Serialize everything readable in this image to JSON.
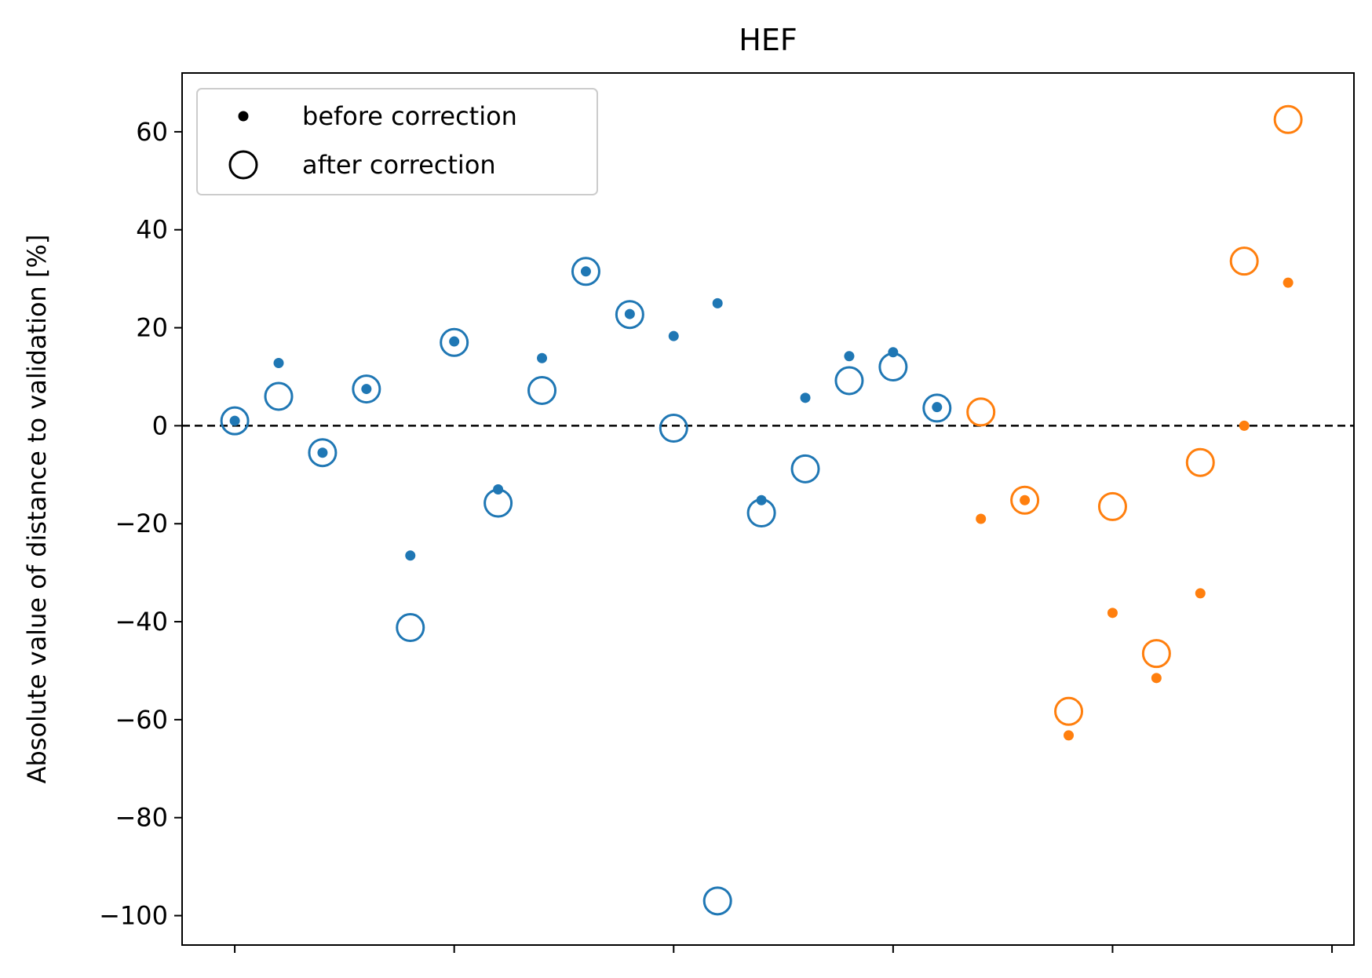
{
  "chart_data": {
    "type": "scatter",
    "title": "HEF",
    "xlabel": "",
    "ylabel": "Absolute value of distance to validation [%]",
    "xlim": [
      -1.2,
      25.5
    ],
    "ylim": [
      -106,
      72
    ],
    "xticks": [
      0,
      5,
      10,
      15,
      20,
      25
    ],
    "xtick_labels_shown": false,
    "yticks": [
      -100,
      -80,
      -60,
      -40,
      -20,
      0,
      20,
      40,
      60
    ],
    "ytick_labels": [
      "−100",
      "−80",
      "−60",
      "−40",
      "−20",
      "0",
      "20",
      "40",
      "60"
    ],
    "reference_line": {
      "y": 0,
      "style": "dashed",
      "color": "#000000"
    },
    "grid": false,
    "legend": {
      "position": "top-left",
      "entries": [
        {
          "label": "before correction",
          "marker": "small-filled-dot"
        },
        {
          "label": "after correction",
          "marker": "large-open-circle"
        }
      ]
    },
    "colors": {
      "group_1": "#1f77b4",
      "group_2": "#ff7f0e"
    },
    "series": [
      {
        "color": "#1f77b4",
        "x": [
          0,
          1,
          2,
          3,
          4,
          5,
          6,
          7,
          8,
          9,
          10,
          11,
          12,
          13,
          14,
          15,
          16
        ],
        "before": [
          1,
          12.8,
          -5.5,
          7.5,
          -26.5,
          17.2,
          -13,
          13.8,
          31.5,
          22.8,
          18.3,
          25,
          -15.2,
          5.7,
          14.2,
          15,
          3.8
        ],
        "after": [
          1,
          6,
          -5.5,
          7.5,
          -41.2,
          17,
          -15.8,
          7.2,
          31.5,
          22.7,
          -0.5,
          -97,
          -17.8,
          -8.8,
          9.2,
          12,
          3.6
        ]
      },
      {
        "color": "#ff7f0e",
        "x": [
          17,
          18,
          19,
          20,
          21,
          22,
          23,
          24
        ],
        "before": [
          -19,
          -15.2,
          -63.2,
          -38.2,
          -51.5,
          -34.2,
          0,
          29.2
        ],
        "after": [
          2.8,
          -15.2,
          -58.3,
          -16.5,
          -46.5,
          -7.5,
          33.6,
          62.5
        ]
      }
    ]
  }
}
